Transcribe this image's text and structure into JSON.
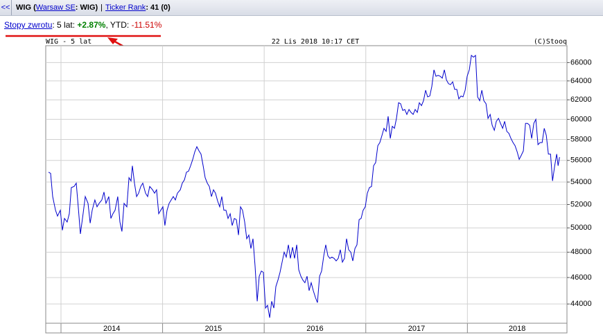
{
  "header": {
    "back": "<<",
    "parts": [
      "WIG",
      "(",
      "Warsaw SE",
      ": WIG)",
      "|",
      "Ticker Rank",
      ": 41 (0)"
    ]
  },
  "returns": {
    "parts": [
      "Stopy zwrotu",
      ": 5 lat: ",
      "+2.87%",
      ", YTD: ",
      "-11.51%"
    ]
  },
  "chart_data": {
    "type": "line",
    "title": "WIG - 5 lat",
    "subtitle": "22 Lis 2018 10:17 CET",
    "source": "(C)Stooq",
    "color": "#0000cc",
    "log_scale": true,
    "grid": true,
    "xlim": [
      2013.85,
      2018.98
    ],
    "xticks": [
      2014,
      2015,
      2016,
      2017,
      2018
    ],
    "ylim": [
      42600,
      67900
    ],
    "yticks": [
      44000,
      46000,
      48000,
      50000,
      52000,
      54000,
      56000,
      58000,
      60000,
      62000,
      64000,
      66000
    ],
    "x": [
      2013.877,
      2013.898,
      2013.918,
      2013.946,
      2013.966,
      2013.993,
      2014.014,
      2014.034,
      2014.061,
      2014.082,
      2014.102,
      2014.129,
      2014.15,
      2014.17,
      2014.191,
      2014.218,
      2014.239,
      2014.266,
      2014.287,
      2014.307,
      2014.334,
      2014.355,
      2014.375,
      2014.402,
      2014.423,
      2014.443,
      2014.471,
      2014.491,
      2014.511,
      2014.532,
      2014.559,
      2014.58,
      2014.6,
      2014.621,
      2014.648,
      2014.669,
      2014.689,
      2014.703,
      2014.723,
      2014.744,
      2014.764,
      2014.785,
      2014.805,
      2014.832,
      2014.853,
      2014.873,
      2014.901,
      2014.921,
      2014.941,
      2014.962,
      2014.982,
      2015.003,
      2015.023,
      2015.044,
      2015.064,
      2015.085,
      2015.105,
      2015.126,
      2015.146,
      2015.174,
      2015.194,
      2015.215,
      2015.235,
      2015.256,
      2015.276,
      2015.297,
      2015.317,
      2015.337,
      2015.358,
      2015.378,
      2015.399,
      2015.419,
      2015.44,
      2015.46,
      2015.481,
      2015.501,
      2015.521,
      2015.542,
      2015.562,
      2015.583,
      2015.603,
      2015.624,
      2015.644,
      2015.665,
      2015.685,
      2015.706,
      2015.726,
      2015.747,
      2015.767,
      2015.787,
      2015.808,
      2015.828,
      2015.849,
      2015.869,
      2015.89,
      2015.91,
      2015.931,
      2015.951,
      2015.972,
      2015.992,
      2016.013,
      2016.033,
      2016.054,
      2016.074,
      2016.095,
      2016.115,
      2016.135,
      2016.156,
      2016.176,
      2016.197,
      2016.217,
      2016.238,
      2016.258,
      2016.279,
      2016.299,
      2016.32,
      2016.34,
      2016.361,
      2016.381,
      2016.401,
      2016.422,
      2016.442,
      2016.463,
      2016.483,
      2016.504,
      2016.524,
      2016.545,
      2016.565,
      2016.586,
      2016.606,
      2016.627,
      2016.647,
      2016.667,
      2016.688,
      2016.708,
      2016.729,
      2016.749,
      2016.77,
      2016.79,
      2016.811,
      2016.831,
      2016.852,
      2016.872,
      2016.893,
      2016.913,
      2016.934,
      2016.954,
      2016.974,
      2016.995,
      2017.015,
      2017.036,
      2017.056,
      2017.077,
      2017.097,
      2017.118,
      2017.138,
      2017.159,
      2017.179,
      2017.2,
      2017.22,
      2017.241,
      2017.261,
      2017.282,
      2017.302,
      2017.323,
      2017.343,
      2017.364,
      2017.384,
      2017.404,
      2017.425,
      2017.445,
      2017.466,
      2017.486,
      2017.507,
      2017.527,
      2017.548,
      2017.568,
      2017.589,
      2017.609,
      2017.63,
      2017.65,
      2017.671,
      2017.691,
      2017.712,
      2017.732,
      2017.753,
      2017.773,
      2017.794,
      2017.814,
      2017.834,
      2017.855,
      2017.875,
      2017.896,
      2017.916,
      2017.937,
      2017.957,
      2017.978,
      2017.998,
      2018.019,
      2018.039,
      2018.06,
      2018.08,
      2018.101,
      2018.121,
      2018.142,
      2018.162,
      2018.183,
      2018.203,
      2018.224,
      2018.244,
      2018.265,
      2018.285,
      2018.306,
      2018.326,
      2018.347,
      2018.367,
      2018.388,
      2018.408,
      2018.429,
      2018.449,
      2018.469,
      2018.49,
      2018.51,
      2018.531,
      2018.551,
      2018.572,
      2018.592,
      2018.613,
      2018.633,
      2018.654,
      2018.674,
      2018.695,
      2018.715,
      2018.736,
      2018.756,
      2018.777,
      2018.797,
      2018.818,
      2018.838,
      2018.859,
      2018.879,
      2018.893,
      2018.907
    ],
    "values": [
      54900,
      54800,
      52700,
      51500,
      51000,
      51500,
      49800,
      50800,
      50500,
      51200,
      53500,
      53600,
      53900,
      51800,
      49500,
      51200,
      52700,
      52100,
      50400,
      51500,
      52400,
      51800,
      52100,
      52400,
      53100,
      52100,
      52700,
      50800,
      51200,
      51500,
      52700,
      50500,
      49700,
      52100,
      51800,
      54400,
      54100,
      55500,
      53900,
      52700,
      53000,
      53600,
      53900,
      53000,
      52700,
      53600,
      53300,
      53000,
      53300,
      51200,
      51500,
      51800,
      50200,
      51500,
      52100,
      52400,
      52700,
      52400,
      53000,
      53300,
      53900,
      54200,
      54900,
      55000,
      55500,
      56100,
      56800,
      57300,
      56900,
      56600,
      55500,
      54400,
      53900,
      53600,
      52700,
      53300,
      53000,
      52300,
      51800,
      52700,
      51500,
      51500,
      50800,
      51200,
      50200,
      50800,
      50700,
      49400,
      51800,
      51500,
      50500,
      49100,
      49400,
      48300,
      49100,
      46900,
      44200,
      46100,
      46500,
      46400,
      43700,
      43900,
      43000,
      44200,
      43700,
      45300,
      45800,
      46400,
      47200,
      48000,
      47600,
      48600,
      47500,
      48400,
      47500,
      48600,
      46600,
      46100,
      45800,
      45600,
      46100,
      45000,
      45600,
      45000,
      44500,
      44100,
      46100,
      46500,
      47700,
      48600,
      47700,
      47500,
      47600,
      47500,
      47300,
      47500,
      48200,
      47200,
      47500,
      49100,
      48200,
      48000,
      47300,
      48300,
      48600,
      50700,
      50800,
      51500,
      51800,
      53000,
      53500,
      53600,
      55500,
      55800,
      57400,
      57700,
      58400,
      59100,
      58800,
      60300,
      58100,
      59300,
      59100,
      60100,
      61700,
      61600,
      60900,
      61000,
      60500,
      61000,
      60700,
      60500,
      61000,
      60700,
      61700,
      61400,
      61900,
      63000,
      62300,
      62400,
      63400,
      65200,
      64500,
      64600,
      64500,
      64300,
      65200,
      64100,
      63700,
      63600,
      63900,
      63100,
      63100,
      62100,
      62400,
      62300,
      63000,
      64500,
      65200,
      66800,
      66600,
      66800,
      62300,
      61900,
      63000,
      61900,
      61600,
      60100,
      60500,
      59400,
      58900,
      59800,
      60100,
      59600,
      59100,
      59800,
      58800,
      58600,
      58100,
      57700,
      57400,
      56800,
      56100,
      56500,
      56900,
      59600,
      59600,
      59400,
      58100,
      59600,
      60000,
      57500,
      57700,
      57700,
      59100,
      58400,
      56600,
      56600,
      54100,
      55500,
      56600,
      55500,
      56300
    ]
  }
}
